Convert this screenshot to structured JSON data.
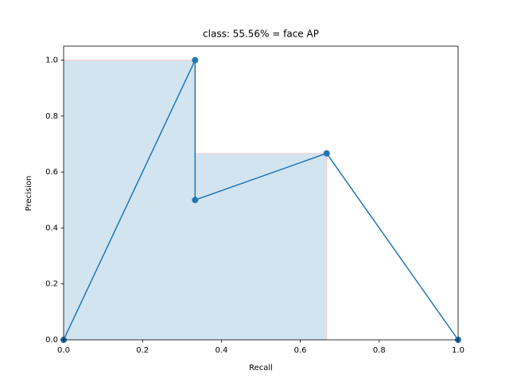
{
  "chart_data": {
    "type": "line",
    "title": "class: 55.56% = face AP",
    "x_label": "Recall",
    "y_label": "Precision",
    "series": [
      {
        "color": "#1f77b4",
        "x": [
          0,
          0.3333,
          0.3333,
          0.6667,
          1.0
        ],
        "values": [
          0,
          1.0,
          0.5,
          0.6667,
          0
        ],
        "markers": true
      },
      {
        "color": "#1f77b4",
        "edge_color": "#ffcccc",
        "fill_opacity": 0.2,
        "area": true,
        "x": [
          0,
          0.3333,
          0.3333,
          0.6667,
          0.6667
        ],
        "values": [
          1.0,
          1.0,
          0.6667,
          0.6667,
          0
        ]
      }
    ],
    "xlim": [
      0,
      1.0
    ],
    "ylim": [
      0,
      1.05
    ],
    "xticks": [
      {
        "value": 0,
        "label": "0.0"
      },
      0.2,
      0.4,
      0.6,
      0.8,
      {
        "value": 1,
        "label": "1.0"
      }
    ],
    "yticks": [
      {
        "value": 0,
        "label": "0.0"
      },
      0.2,
      0.4,
      0.6,
      0.8,
      {
        "value": 1,
        "label": "1.0"
      }
    ],
    "grid": false
  }
}
